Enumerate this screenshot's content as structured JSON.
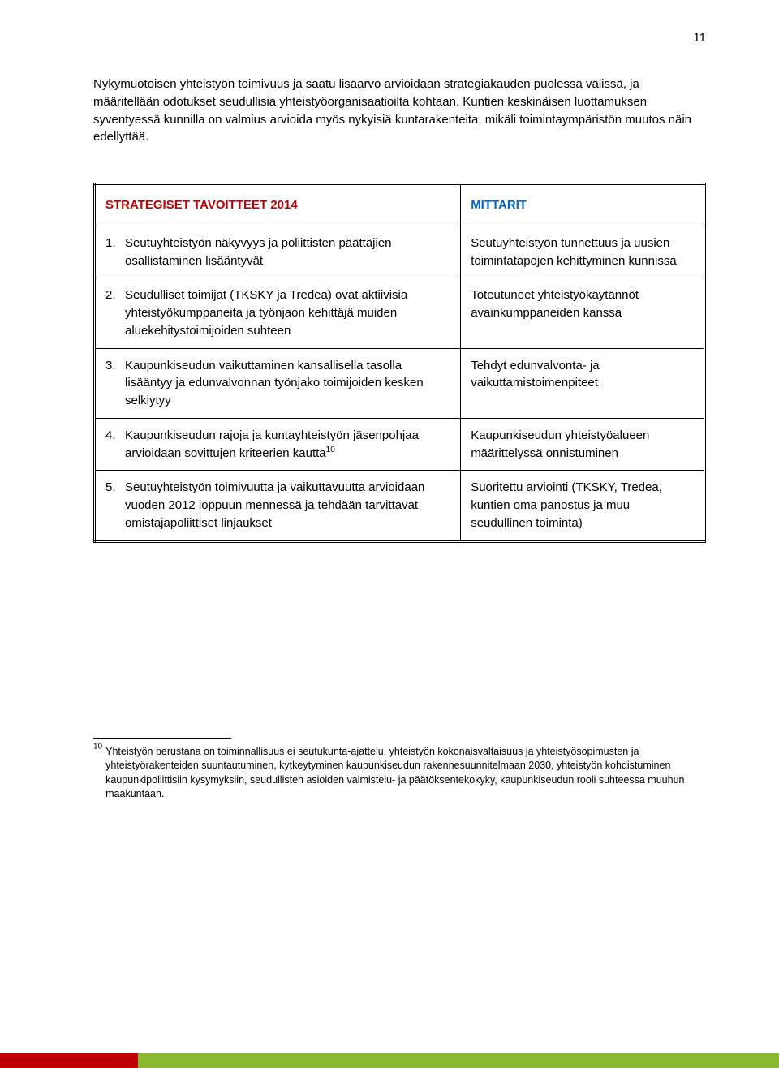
{
  "page_number": "11",
  "intro_paragraph": "Nykymuotoisen yhteistyön toimivuus ja saatu lisäarvo arvioidaan strategiakauden puolessa välissä, ja määritellään odotukset seudullisia yhteistyöorganisaatioilta kohtaan. Kuntien keskinäisen luottamuksen syventyessä kunnilla on valmius arvioida myös nykyisiä kuntarakenteita, mikäli toimintaympäristön muutos näin edellyttää.",
  "table": {
    "header_left": "STRATEGISET TAVOITTEET 2014",
    "header_right": "MITTARIT",
    "header_left_color": "#c00000",
    "header_right_color": "#0066cc",
    "rows": [
      {
        "num": "1.",
        "left": "Seutuyhteistyön näkyvyys ja poliittisten päättäjien osallistaminen lisääntyvät",
        "right": "Seutuyhteistyön tunnettuus ja uusien toimintatapojen kehittyminen kunnissa"
      },
      {
        "num": "2.",
        "left": "Seudulliset toimijat (TKSKY ja Tredea) ovat aktiivisia yhteistyökumppaneita ja työnjaon kehittäjä muiden aluekehitystoimijoiden suhteen",
        "right": "Toteutuneet yhteistyökäytännöt avainkumppaneiden kanssa"
      },
      {
        "num": "3.",
        "left": "Kaupunkiseudun vaikuttaminen kansallisella tasolla lisääntyy ja edunvalvonnan työnjako toimijoiden kesken selkiytyy",
        "right": "Tehdyt edunvalvonta- ja vaikuttamistoimenpiteet"
      },
      {
        "num": "4.",
        "left_pre": "Kaupunkiseudun rajoja ja kuntayhteistyön jäsenpohjaa arvioidaan sovittujen kriteerien kautta",
        "left_sup": "10",
        "right": "Kaupunkiseudun yhteistyöalueen määrittelyssä onnistuminen"
      },
      {
        "num": "5.",
        "left": "Seutuyhteistyön toimivuutta ja vaikuttavuutta arvioidaan vuoden 2012 loppuun mennessä ja tehdään tarvittavat omistajapoliittiset linjaukset",
        "right": "Suoritettu arviointi (TKSKY, Tredea, kuntien oma panostus ja muu seudullinen toiminta)"
      }
    ]
  },
  "footnote": {
    "num": "10",
    "text": "Yhteistyön perustana on toiminnallisuus ei seutukunta-ajattelu, yhteistyön kokonaisvaltaisuus ja yhteistyösopimusten ja yhteistyörakenteiden suuntautuminen, kytkeytyminen kaupunkiseudun rakennesuunnitelmaan 2030, yhteistyön kohdistuminen kaupunkipoliittisiin kysymyksiin, seudullisten asioiden valmistelu- ja päätöksentekokyky, kaupunkiseudun rooli suhteessa muuhun maakuntaan."
  },
  "footer": {
    "red_bar_width": 170,
    "red_bar_color": "#c00000",
    "green_bar_color": "#8ab833"
  }
}
